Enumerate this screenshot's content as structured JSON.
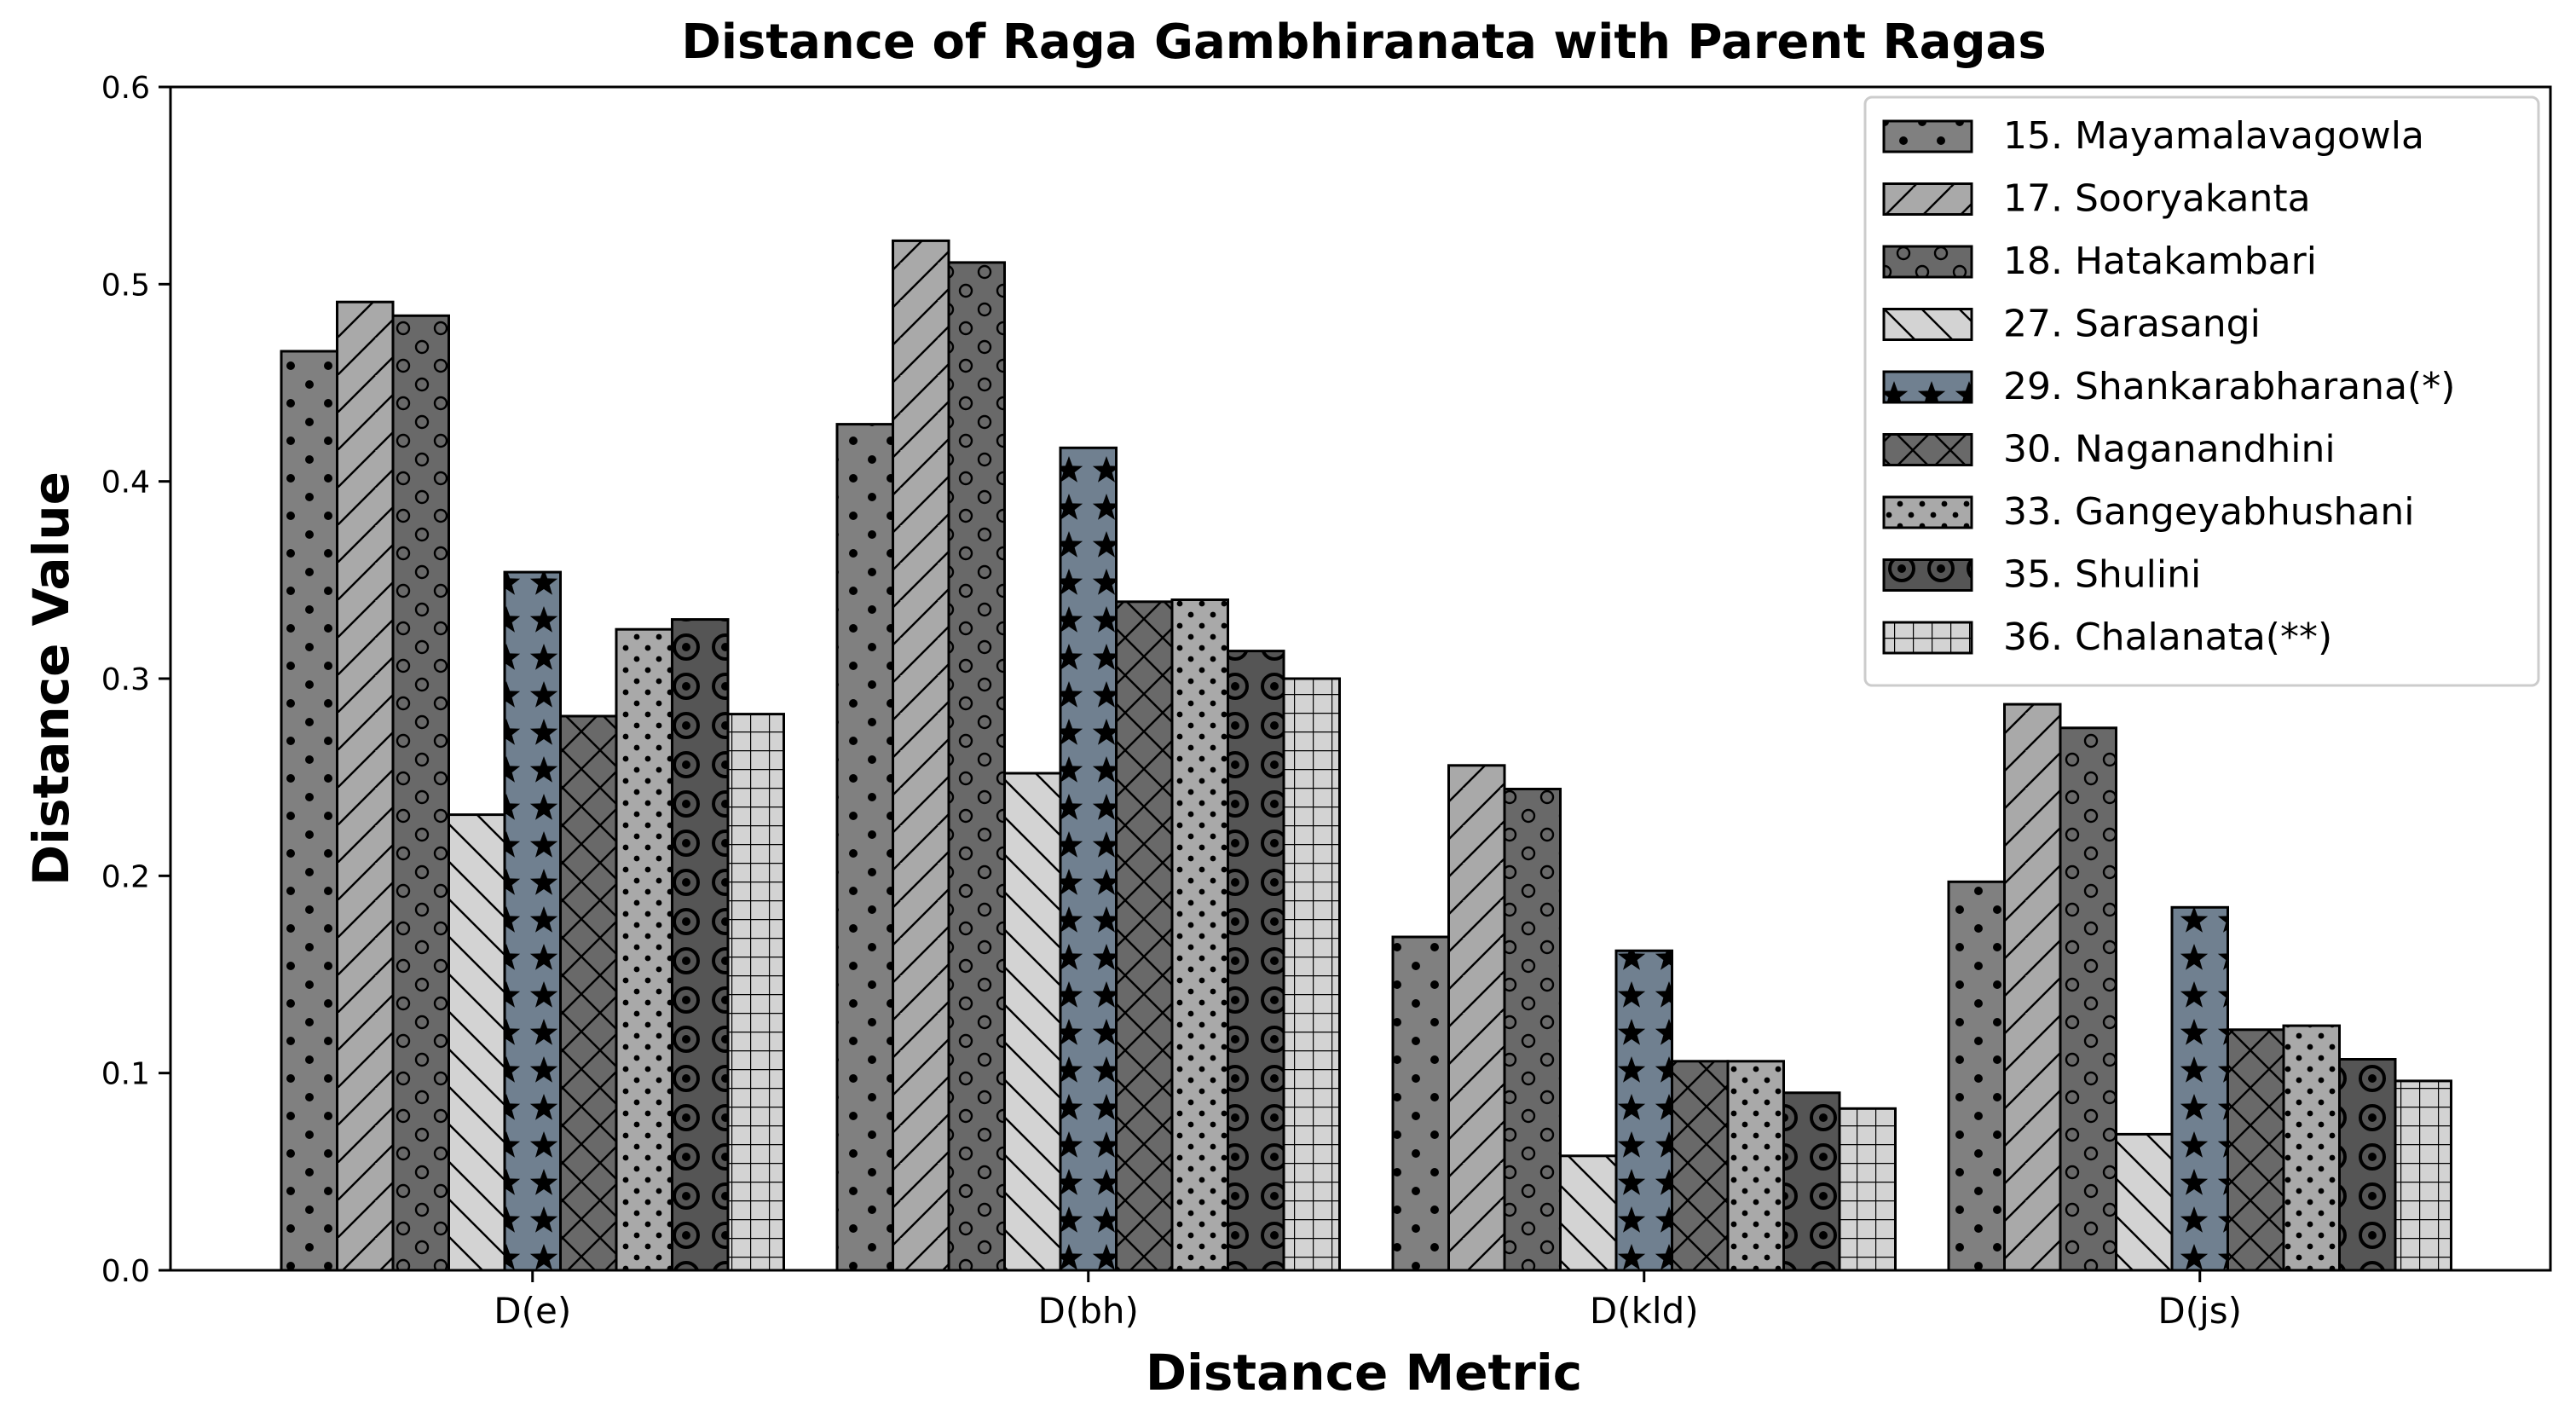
{
  "chart_data": {
    "type": "bar",
    "title": "Distance of Raga Gambhiranata with Parent Ragas",
    "xlabel": "Distance Metric",
    "ylabel": "Distance Value",
    "categories": [
      "D(e)",
      "D(bh)",
      "D(kld)",
      "D(js)"
    ],
    "ylim": [
      0,
      0.6
    ],
    "yticks": [
      "0.0",
      "0.1",
      "0.2",
      "0.3",
      "0.4",
      "0.5",
      "0.6"
    ],
    "grid": false,
    "legend_position": "top-right",
    "series": [
      {
        "name": "15. Mayamalavagowla",
        "values": [
          0.466,
          0.429,
          0.169,
          0.197
        ],
        "color": "#808080",
        "pattern": "dots"
      },
      {
        "name": "17. Sooryakanta",
        "values": [
          0.491,
          0.522,
          0.256,
          0.287
        ],
        "color": "#a9a9a9",
        "pattern": "forward-diagonal"
      },
      {
        "name": "18. Hatakambari",
        "values": [
          0.484,
          0.511,
          0.244,
          0.275
        ],
        "color": "#696969",
        "pattern": "small-circles"
      },
      {
        "name": "27. Sarasangi",
        "values": [
          0.231,
          0.252,
          0.058,
          0.069
        ],
        "color": "#d3d3d3",
        "pattern": "back-diagonal"
      },
      {
        "name": "29. Shankarabharana(*)",
        "values": [
          0.354,
          0.417,
          0.162,
          0.184
        ],
        "color": "#708090",
        "pattern": "stars"
      },
      {
        "name": "30. Naganandhini",
        "values": [
          0.281,
          0.339,
          0.106,
          0.122
        ],
        "color": "#696969",
        "pattern": "crosshatch"
      },
      {
        "name": "33. Gangeyabhushani",
        "values": [
          0.325,
          0.34,
          0.106,
          0.124
        ],
        "color": "#a9a9a9",
        "pattern": "small-dots"
      },
      {
        "name": "35. Shulini",
        "values": [
          0.33,
          0.314,
          0.09,
          0.107
        ],
        "color": "#555555",
        "pattern": "rings"
      },
      {
        "name": "36. Chalanata(**)",
        "values": [
          0.282,
          0.3,
          0.082,
          0.096
        ],
        "color": "#d3d3d3",
        "pattern": "grid"
      }
    ]
  }
}
